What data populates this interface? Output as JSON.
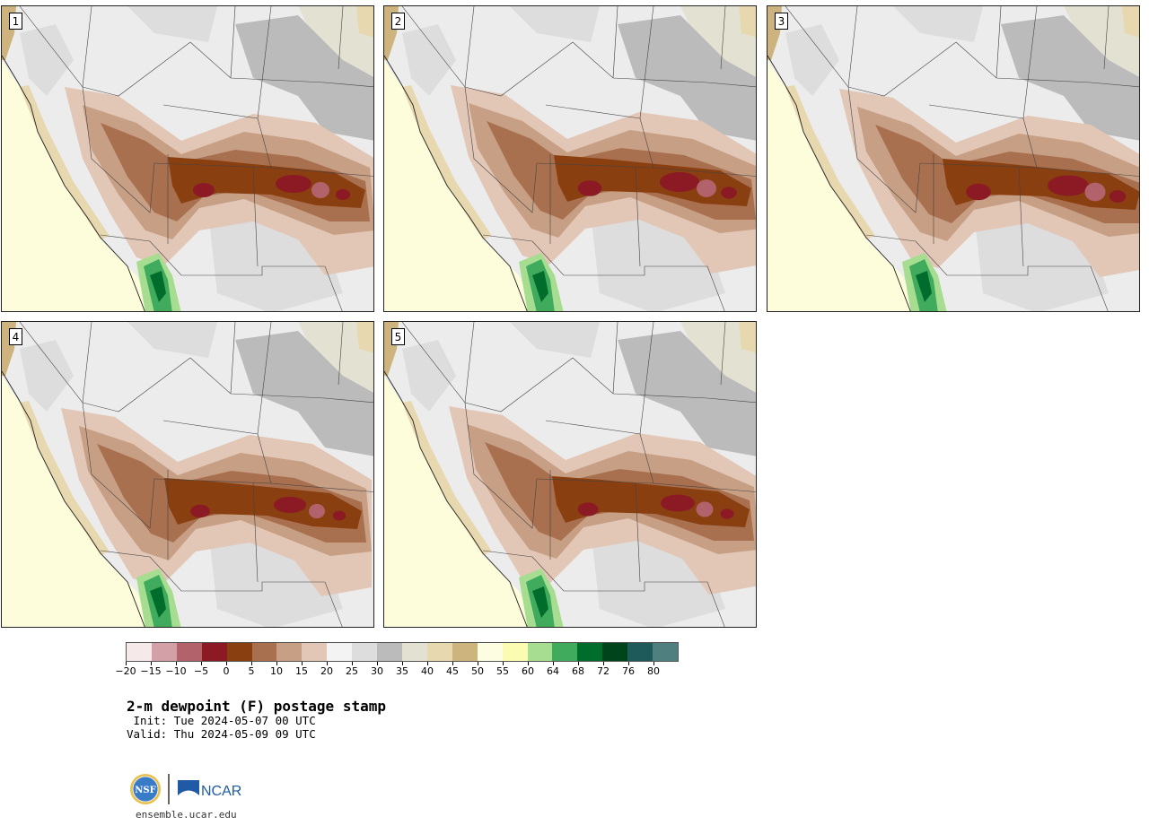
{
  "panels": [
    {
      "label": "1"
    },
    {
      "label": "2"
    },
    {
      "label": "3"
    },
    {
      "label": "4"
    },
    {
      "label": "5"
    }
  ],
  "colorbar": {
    "levels": [
      "−20",
      "−15",
      "−10",
      "−5",
      "0",
      "5",
      "10",
      "15",
      "20",
      "25",
      "30",
      "35",
      "40",
      "45",
      "50",
      "55",
      "60",
      "64",
      "68",
      "72",
      "76",
      "80"
    ],
    "colors": [
      "#f6e9ea",
      "#d3a0a7",
      "#b2626a",
      "#8b1a24",
      "#8a3f10",
      "#a97050",
      "#c79f84",
      "#e2c6b6",
      "#f3f3f3",
      "#dddddd",
      "#bbbbbb",
      "#e3e1d2",
      "#e8d8b0",
      "#cdb47e",
      "#fdfde2",
      "#fbfcb2",
      "#a7dd90",
      "#41ab5d",
      "#006d2c",
      "#00441b",
      "#1e5a5a",
      "#4f7f7f"
    ],
    "units": "F"
  },
  "title": "2-m dewpoint (F) postage stamp",
  "init_line": " Init: Tue 2024-05-07 00 UTC",
  "valid_line": "Valid: Thu 2024-05-09 09 UTC",
  "logo": {
    "nsf": "NSF",
    "ncar": "NCAR"
  },
  "url": "ensemble.ucar.edu"
}
